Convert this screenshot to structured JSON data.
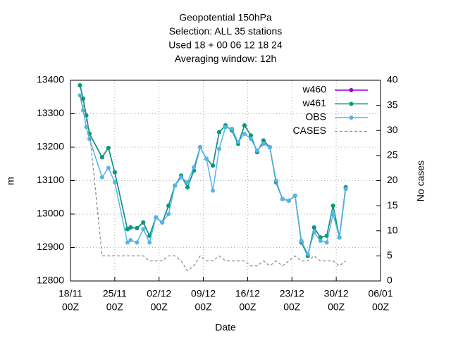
{
  "chart_data": {
    "type": "line",
    "title": [
      "Geopotential 150hPa",
      "Selection: ALL     35 stations",
      "Used  18  + 00 06 12 18 24",
      "Averaging window: 12h"
    ],
    "xlabel": "Date",
    "ylabel": "m",
    "y2label": "No cases",
    "x": [
      "19/11 12Z",
      "20/11 00Z",
      "20/11 12Z",
      "21/11 00Z",
      "23/11 00Z",
      "24/11 00Z",
      "25/11 00Z",
      "27/11 00Z",
      "27/11 12Z",
      "28/11 12Z",
      "29/11 12Z",
      "30/11 12Z",
      "01/12 12Z",
      "02/12 12Z",
      "03/12 12Z",
      "04/12 12Z",
      "05/12 12Z",
      "06/12 12Z",
      "07/12 12Z",
      "08/12 12Z",
      "09/12 12Z",
      "10/12 12Z",
      "11/12 12Z",
      "12/12 12Z",
      "13/12 12Z",
      "14/12 12Z",
      "15/12 12Z",
      "16/12 12Z",
      "17/12 12Z",
      "18/12 12Z",
      "19/12 12Z",
      "20/12 12Z",
      "21/12 12Z",
      "22/12 12Z",
      "23/12 12Z",
      "24/12 12Z",
      "25/12 12Z",
      "26/12 12Z",
      "27/12 12Z",
      "28/12 12Z",
      "29/12 12Z",
      "30/12 12Z",
      "31/12 12Z"
    ],
    "series": [
      {
        "name": "w460",
        "color": "#9400d3",
        "values": [
          13385,
          13345,
          13295,
          13240,
          13170,
          13198,
          13125,
          12955,
          12960,
          12958,
          12975,
          12935,
          12990,
          12975,
          13025,
          13085,
          13115,
          13080,
          13130,
          13200,
          13165,
          13145,
          13245,
          13265,
          13250,
          13210,
          13265,
          13235,
          13185,
          13220,
          13200,
          13095,
          13045,
          13040,
          13055,
          12915,
          12875,
          12960,
          12930,
          12935,
          13025,
          12930,
          13080
        ]
      },
      {
        "name": "w461",
        "color": "#009e73",
        "values": [
          13385,
          13345,
          13295,
          13240,
          13170,
          13198,
          13125,
          12955,
          12960,
          12958,
          12975,
          12935,
          12990,
          12975,
          13025,
          13085,
          13115,
          13080,
          13130,
          13200,
          13165,
          13145,
          13245,
          13265,
          13250,
          13210,
          13265,
          13235,
          13185,
          13220,
          13200,
          13095,
          13045,
          13040,
          13055,
          12915,
          12875,
          12960,
          12930,
          12935,
          13025,
          12930,
          13080
        ]
      },
      {
        "name": "OBS",
        "color": "#56b4e9",
        "values": [
          13355,
          13310,
          13260,
          13225,
          13110,
          13138,
          13095,
          12915,
          12922,
          12915,
          12955,
          12915,
          12990,
          12975,
          13000,
          13085,
          13110,
          13095,
          13140,
          13200,
          13165,
          13070,
          13195,
          13260,
          13255,
          13215,
          13240,
          13225,
          13190,
          13210,
          13200,
          13100,
          13045,
          13040,
          13055,
          12920,
          12880,
          12945,
          12920,
          12915,
          13000,
          12930,
          13075
        ]
      },
      {
        "name": "CASES",
        "color": "#888888",
        "axis": "y2",
        "dashed": true,
        "values": [
          37,
          35,
          32,
          30,
          5,
          5,
          5,
          5,
          5,
          5,
          5,
          4,
          4,
          4,
          5,
          5,
          4,
          2,
          3,
          5,
          4,
          4,
          5,
          4,
          4,
          4,
          4,
          3,
          3,
          4,
          3,
          4,
          3,
          4,
          5,
          4,
          4,
          5,
          4,
          4,
          4,
          3,
          4
        ]
      }
    ],
    "xlim": [
      "18/11 00Z",
      "06/01 00Z"
    ],
    "xticks": [
      {
        "value": "18/11 00Z",
        "label": [
          "18/11",
          "00Z"
        ]
      },
      {
        "value": "25/11 00Z",
        "label": [
          "25/11",
          "00Z"
        ]
      },
      {
        "value": "02/12 00Z",
        "label": [
          "02/12",
          "00Z"
        ]
      },
      {
        "value": "09/12 00Z",
        "label": [
          "09/12",
          "00Z"
        ]
      },
      {
        "value": "16/12 00Z",
        "label": [
          "16/12",
          "00Z"
        ]
      },
      {
        "value": "23/12 00Z",
        "label": [
          "23/12",
          "00Z"
        ]
      },
      {
        "value": "30/12 00Z",
        "label": [
          "30/12",
          "00Z"
        ]
      },
      {
        "value": "06/01 00Z",
        "label": [
          "06/01",
          "00Z"
        ]
      }
    ],
    "ylim": [
      12800,
      13400
    ],
    "yticks": [
      12800,
      12900,
      13000,
      13100,
      13200,
      13300,
      13400
    ],
    "y2lim": [
      0,
      40
    ],
    "y2ticks": [
      0,
      5,
      10,
      15,
      20,
      25,
      30,
      35,
      40
    ],
    "grid": true,
    "legend": "top right"
  }
}
